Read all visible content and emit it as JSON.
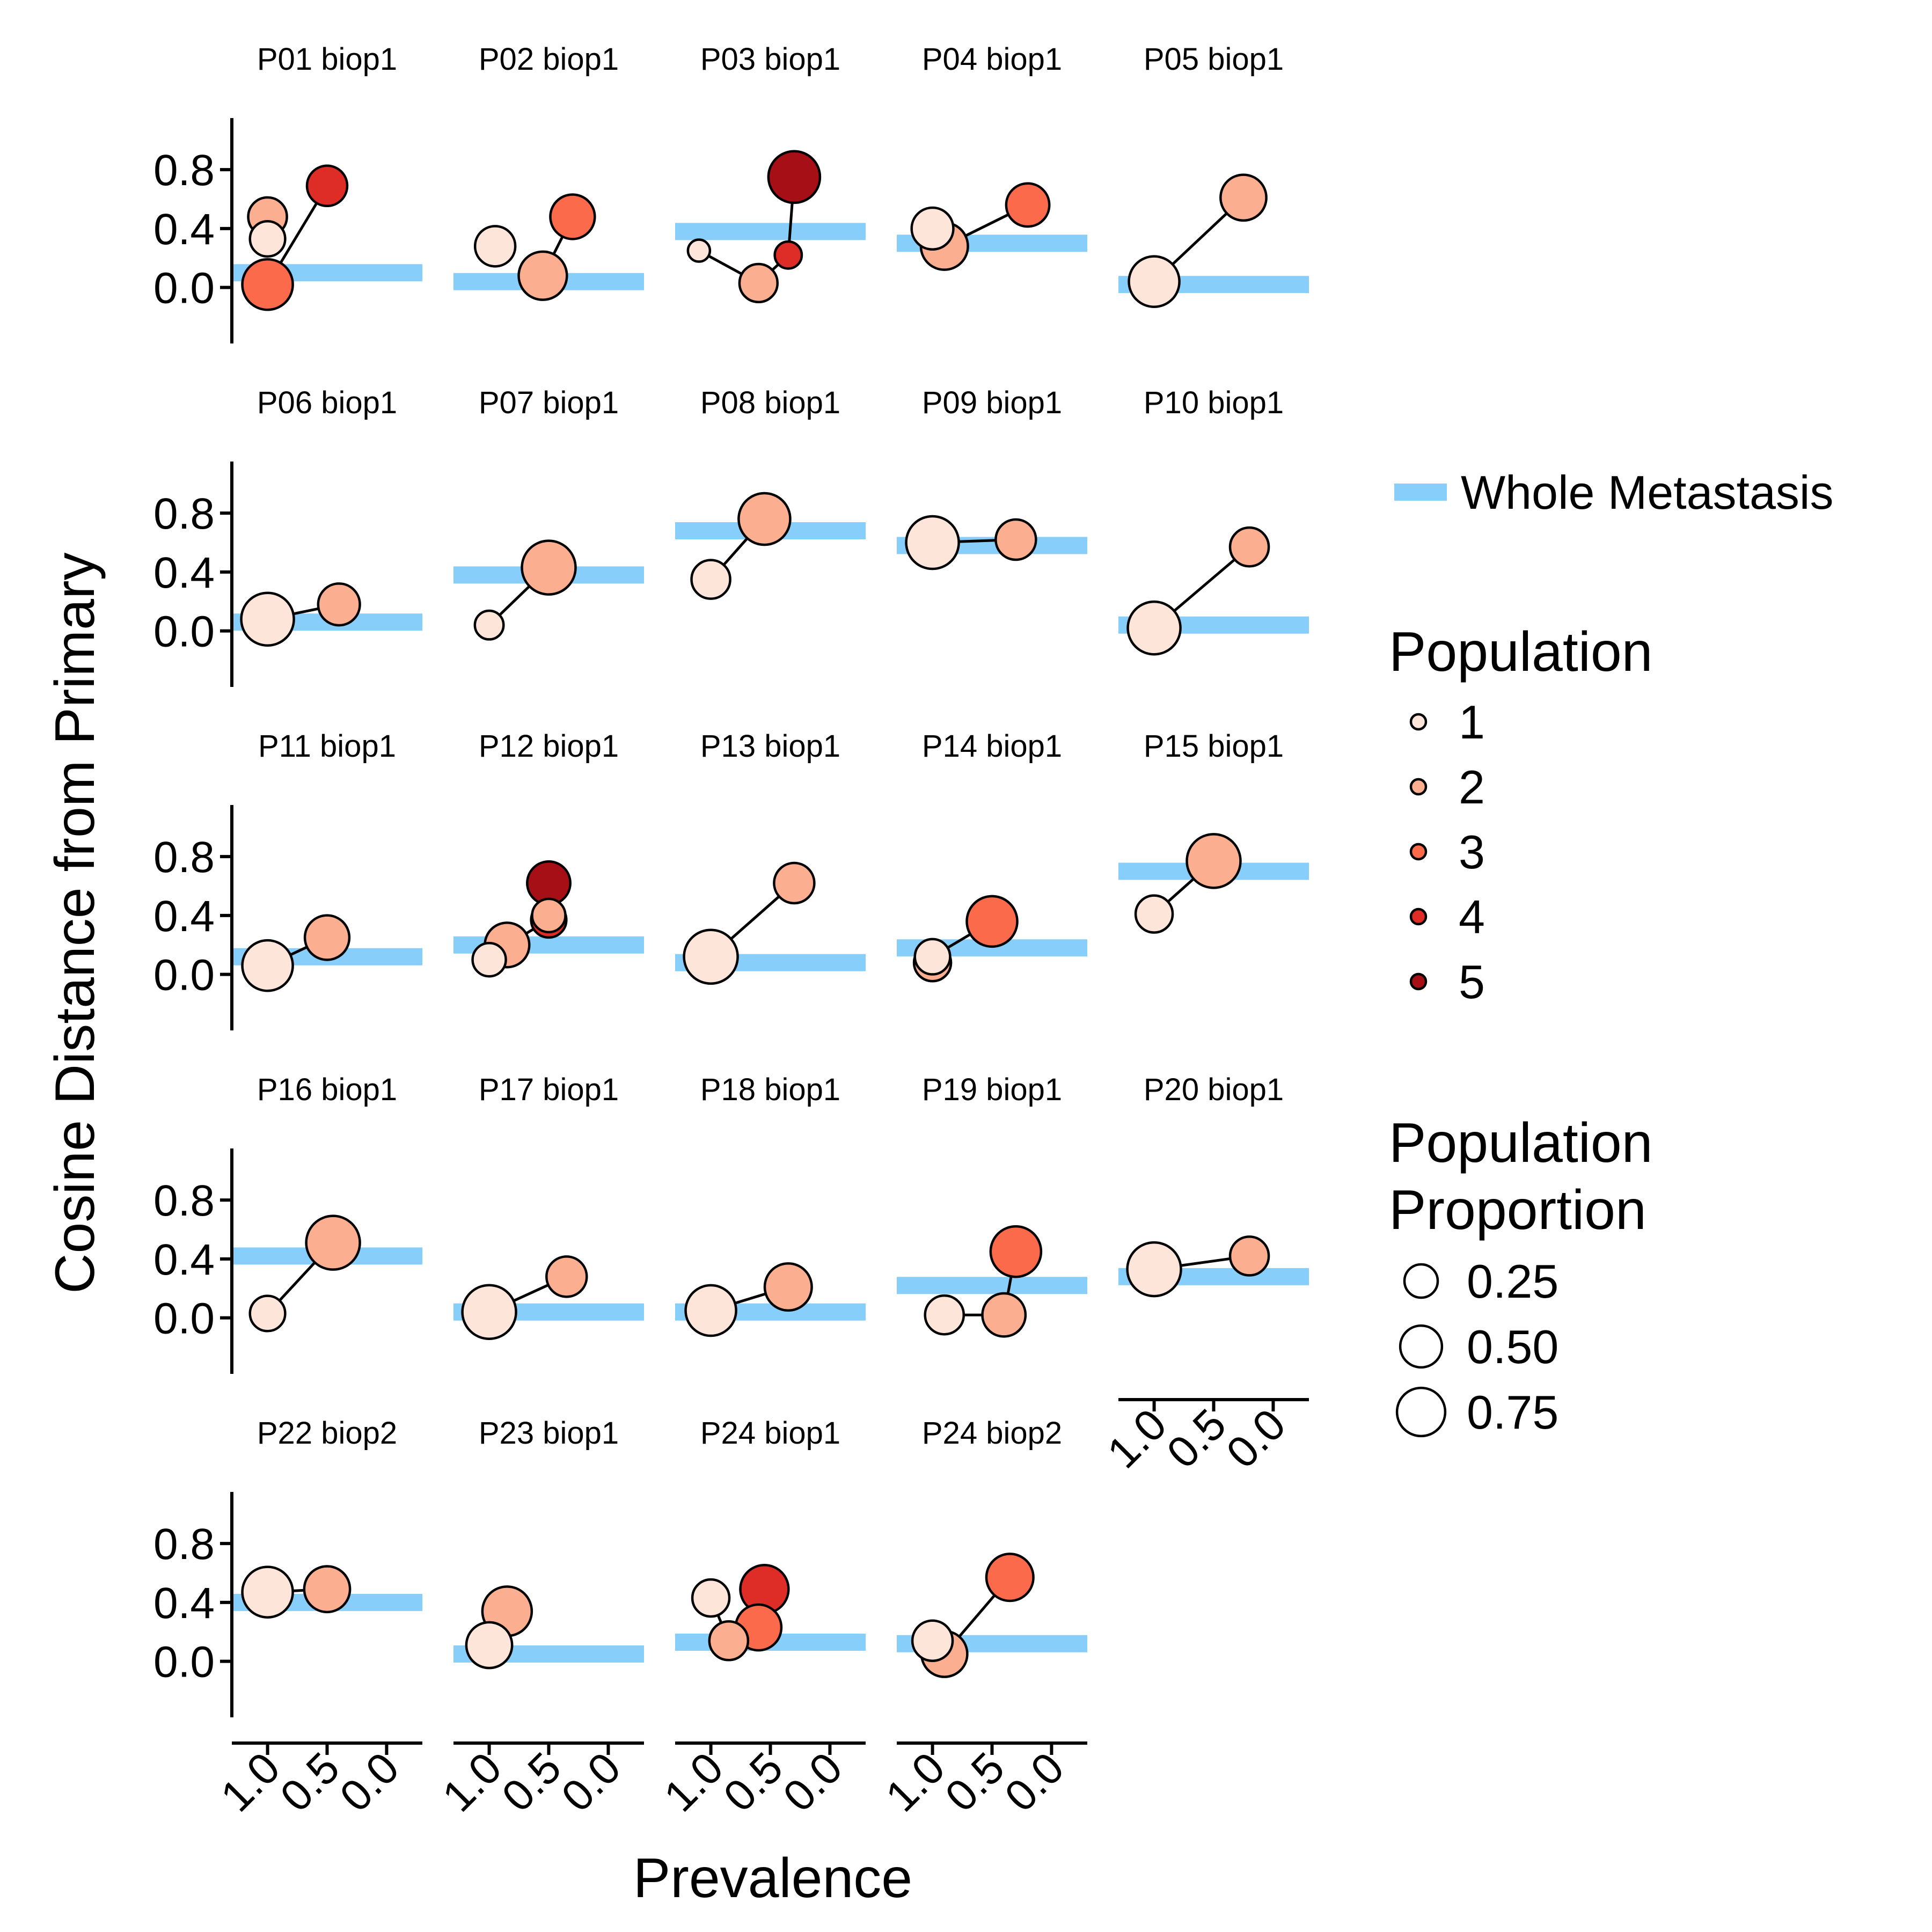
{
  "chart_data": {
    "type": "scatter",
    "xlabel": "Prevalence",
    "ylabel": "Cosine Distance from Primary",
    "x_axis": {
      "reversed": true,
      "lim": [
        1.3,
        -0.3
      ],
      "ticks": [
        1.0,
        0.5,
        0.0
      ],
      "tick_labels": [
        "1.0",
        "0.5",
        "0.0"
      ]
    },
    "y_axis": {
      "lim": [
        -0.38,
        1.15
      ],
      "ticks": [
        0.0,
        0.4,
        0.8
      ],
      "tick_labels": [
        "0.0",
        "0.4",
        "0.8"
      ]
    },
    "grid": false,
    "legend_placement": "right",
    "colors": {
      "whole_metastasis": "#87CEFA",
      "population": [
        "#FEE5D9",
        "#FCAE91",
        "#FB6A4A",
        "#DE2D26",
        "#A50F15"
      ]
    },
    "legend": {
      "whole_metastasis_label": "Whole Metastasis",
      "population_title": "Population",
      "population_levels": [
        "1",
        "2",
        "3",
        "4",
        "5"
      ],
      "proportion_title_line1": "Population",
      "proportion_title_line2": "Proportion",
      "proportion_levels": [
        0.25,
        0.5,
        0.75
      ],
      "proportion_labels": [
        "0.25",
        "0.50",
        "0.75"
      ]
    },
    "facets": [
      {
        "title": "P01 biop1",
        "whole": 0.1,
        "points": [
          [
            1.0,
            0.02,
            3,
            0.85
          ],
          [
            1.0,
            0.33,
            1,
            0.3
          ],
          [
            1.0,
            0.48,
            2,
            0.4
          ],
          [
            0.5,
            0.69,
            4,
            0.45
          ]
        ],
        "links": [
          [
            0,
            3
          ],
          [
            1,
            2
          ]
        ]
      },
      {
        "title": "P02 biop1",
        "whole": 0.04,
        "points": [
          [
            0.55,
            0.08,
            2,
            0.75
          ],
          [
            0.95,
            0.28,
            1,
            0.45
          ],
          [
            0.3,
            0.48,
            3,
            0.6
          ]
        ],
        "links": [
          [
            0,
            2
          ]
        ]
      },
      {
        "title": "P03 biop1",
        "whole": 0.38,
        "points": [
          [
            0.3,
            0.75,
            5,
            0.9
          ],
          [
            0.35,
            0.22,
            4,
            0.12
          ],
          [
            0.6,
            0.03,
            2,
            0.38
          ],
          [
            1.1,
            0.25,
            1,
            0.05
          ]
        ],
        "links": [
          [
            0,
            1
          ],
          [
            1,
            2
          ],
          [
            2,
            3
          ]
        ]
      },
      {
        "title": "P04 biop1",
        "whole": 0.3,
        "points": [
          [
            1.0,
            0.4,
            1,
            0.5
          ],
          [
            0.9,
            0.28,
            2,
            0.7
          ],
          [
            0.2,
            0.56,
            3,
            0.55
          ]
        ],
        "links": [
          [
            1,
            2
          ]
        ]
      },
      {
        "title": "P05 biop1",
        "whole": 0.02,
        "points": [
          [
            1.0,
            0.04,
            1,
            0.85
          ],
          [
            0.25,
            0.61,
            2,
            0.65
          ]
        ],
        "links": [
          [
            0,
            1
          ]
        ]
      },
      {
        "title": "P06 biop1",
        "whole": 0.06,
        "points": [
          [
            1.0,
            0.08,
            1,
            0.95
          ],
          [
            0.4,
            0.18,
            2,
            0.5
          ]
        ],
        "links": [
          [
            0,
            1
          ]
        ]
      },
      {
        "title": "P07 biop1",
        "whole": 0.38,
        "points": [
          [
            1.0,
            0.04,
            1,
            0.15
          ],
          [
            0.5,
            0.43,
            2,
            1.0
          ]
        ],
        "links": [
          [
            0,
            1
          ]
        ]
      },
      {
        "title": "P08 biop1",
        "whole": 0.68,
        "points": [
          [
            1.0,
            0.35,
            1,
            0.4
          ],
          [
            0.55,
            0.76,
            2,
            0.9
          ]
        ],
        "links": [
          [
            0,
            1
          ]
        ]
      },
      {
        "title": "P09 biop1",
        "whole": 0.58,
        "points": [
          [
            1.0,
            0.6,
            1,
            0.95
          ],
          [
            0.3,
            0.62,
            2,
            0.45
          ]
        ],
        "links": [
          [
            0,
            1
          ]
        ]
      },
      {
        "title": "P10 biop1",
        "whole": 0.04,
        "points": [
          [
            1.0,
            0.02,
            1,
            0.95
          ],
          [
            0.2,
            0.57,
            2,
            0.4
          ]
        ],
        "links": [
          [
            0,
            1
          ]
        ]
      },
      {
        "title": "P11 biop1",
        "whole": 0.12,
        "points": [
          [
            1.0,
            0.06,
            1,
            0.85
          ],
          [
            0.5,
            0.25,
            2,
            0.6
          ]
        ],
        "links": [
          [
            0,
            1
          ]
        ]
      },
      {
        "title": "P12 biop1",
        "whole": 0.2,
        "points": [
          [
            1.0,
            0.1,
            1,
            0.25
          ],
          [
            0.85,
            0.2,
            2,
            0.6
          ],
          [
            0.5,
            0.4,
            2,
            0.25
          ],
          [
            0.5,
            0.37,
            4,
            0.3
          ],
          [
            0.5,
            0.62,
            5,
            0.55
          ]
        ],
        "links": [
          [
            0,
            1
          ],
          [
            1,
            3
          ],
          [
            2,
            4
          ]
        ]
      },
      {
        "title": "P13 biop1",
        "whole": 0.08,
        "points": [
          [
            1.0,
            0.12,
            1,
            1.0
          ],
          [
            0.3,
            0.62,
            2,
            0.45
          ]
        ],
        "links": [
          [
            0,
            1
          ]
        ]
      },
      {
        "title": "P14 biop1",
        "whole": 0.18,
        "points": [
          [
            1.0,
            0.12,
            1,
            0.3
          ],
          [
            1.0,
            0.08,
            2,
            0.35
          ],
          [
            0.5,
            0.36,
            3,
            0.85
          ]
        ],
        "links": [
          [
            0,
            2
          ]
        ]
      },
      {
        "title": "P15 biop1",
        "whole": 0.7,
        "points": [
          [
            1.0,
            0.41,
            1,
            0.35
          ],
          [
            0.5,
            0.77,
            2,
            1.0
          ]
        ],
        "links": [
          [
            0,
            1
          ]
        ]
      },
      {
        "title": "P16 biop1",
        "whole": 0.42,
        "points": [
          [
            1.0,
            0.03,
            1,
            0.3
          ],
          [
            0.45,
            0.51,
            2,
            1.0
          ]
        ],
        "links": [
          [
            0,
            1
          ]
        ]
      },
      {
        "title": "P17 biop1",
        "whole": 0.04,
        "points": [
          [
            1.0,
            0.04,
            1,
            1.0
          ],
          [
            0.35,
            0.28,
            2,
            0.45
          ]
        ],
        "links": [
          [
            0,
            1
          ]
        ]
      },
      {
        "title": "P18 biop1",
        "whole": 0.04,
        "points": [
          [
            1.0,
            0.05,
            1,
            0.85
          ],
          [
            0.35,
            0.21,
            2,
            0.7
          ]
        ],
        "links": [
          [
            0,
            1
          ]
        ]
      },
      {
        "title": "P19 biop1",
        "whole": 0.22,
        "points": [
          [
            0.9,
            0.02,
            1,
            0.4
          ],
          [
            0.4,
            0.02,
            2,
            0.55
          ],
          [
            0.3,
            0.45,
            3,
            0.85
          ]
        ],
        "links": [
          [
            0,
            1
          ],
          [
            1,
            2
          ]
        ]
      },
      {
        "title": "P20 biop1",
        "whole": 0.28,
        "points": [
          [
            1.0,
            0.33,
            1,
            1.0
          ],
          [
            0.2,
            0.42,
            2,
            0.4
          ]
        ],
        "links": [
          [
            0,
            1
          ]
        ]
      },
      {
        "title": "P22 biop2",
        "whole": 0.4,
        "points": [
          [
            1.0,
            0.47,
            1,
            0.85
          ],
          [
            0.5,
            0.49,
            2,
            0.65
          ]
        ],
        "links": [
          [
            0,
            1
          ]
        ]
      },
      {
        "title": "P23 biop1",
        "whole": 0.05,
        "points": [
          [
            1.0,
            0.11,
            1,
            0.65
          ],
          [
            0.85,
            0.34,
            2,
            0.8
          ]
        ],
        "links": [
          [
            0,
            1
          ]
        ]
      },
      {
        "title": "P24 biop1",
        "whole": 0.13,
        "points": [
          [
            1.0,
            0.43,
            1,
            0.35
          ],
          [
            0.85,
            0.14,
            2,
            0.4
          ],
          [
            0.6,
            0.23,
            3,
            0.65
          ],
          [
            0.55,
            0.49,
            4,
            0.75
          ]
        ],
        "links": [
          [
            0,
            1
          ],
          [
            1,
            2
          ],
          [
            2,
            3
          ]
        ]
      },
      {
        "title": "P24 biop2",
        "whole": 0.12,
        "points": [
          [
            1.0,
            0.14,
            1,
            0.45
          ],
          [
            0.9,
            0.05,
            2,
            0.65
          ],
          [
            0.35,
            0.57,
            3,
            0.7
          ]
        ],
        "links": [
          [
            1,
            2
          ]
        ]
      }
    ]
  }
}
